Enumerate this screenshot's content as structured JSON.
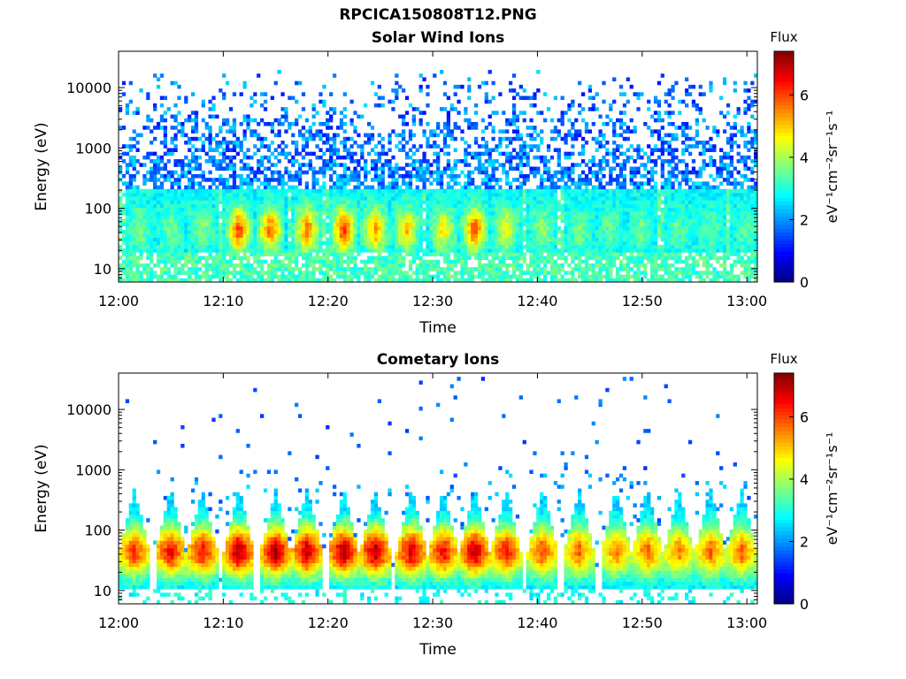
{
  "main_title": "RPCICA150808T12.PNG",
  "colorbar": {
    "label": "Flux",
    "unit_label": "eV⁻¹cm⁻²sr⁻¹s⁻¹",
    "ticks": [
      "0",
      "2",
      "4",
      "6"
    ],
    "range": [
      0,
      7.4
    ],
    "colormap": "jet"
  },
  "chart_data": [
    {
      "type": "heatmap",
      "title": "Solar Wind Ions",
      "xlabel": "Time",
      "ylabel": "Energy (eV)",
      "xlim": [
        "12:00",
        "13:01"
      ],
      "ylim": [
        6,
        40000
      ],
      "yscale": "log",
      "xticks": [
        "12:00",
        "12:10",
        "12:20",
        "12:30",
        "12:40",
        "12:50",
        "13:00"
      ],
      "yticks": [
        10,
        100,
        1000,
        10000
      ],
      "ytick_labels": [
        "10",
        "100",
        "1000",
        "10000"
      ],
      "zlim": [
        0,
        7.4
      ],
      "burst_times_min": [
        2,
        5,
        8,
        11.5,
        14.5,
        18,
        21.5,
        24.5,
        27.5,
        31,
        34,
        37,
        40.5,
        44,
        47,
        50,
        53.5,
        56.5,
        60
      ],
      "burst_peak_flux": [
        3.8,
        3.6,
        3.8,
        6.2,
        5.8,
        5.8,
        6.2,
        5.5,
        5.2,
        4.8,
        6.0,
        4.6,
        4.0,
        3.6,
        3.6,
        3.6,
        3.5,
        3.5,
        3.5
      ],
      "background_flux": "1.2-2.8 above 200 eV"
    },
    {
      "type": "heatmap",
      "title": "Cometary Ions",
      "xlabel": "Time",
      "ylabel": "Energy (eV)",
      "xlim": [
        "12:00",
        "13:01"
      ],
      "ylim": [
        6,
        40000
      ],
      "yscale": "log",
      "xticks": [
        "12:00",
        "12:10",
        "12:20",
        "12:30",
        "12:40",
        "12:50",
        "13:00"
      ],
      "yticks": [
        10,
        100,
        1000,
        10000
      ],
      "ytick_labels": [
        "10",
        "100",
        "1000",
        "10000"
      ],
      "zlim": [
        0,
        7.4
      ],
      "burst_times_min": [
        1.5,
        5,
        8,
        11.5,
        15,
        18,
        21.5,
        24.5,
        28,
        31,
        34,
        37,
        40.5,
        44,
        47.5,
        50.5,
        53.5,
        56.5,
        59.5
      ],
      "burst_peak_flux": [
        6.2,
        6.6,
        6.6,
        7.2,
        7.1,
        7.0,
        7.2,
        7.1,
        6.9,
        6.6,
        7.1,
        6.5,
        6.0,
        5.8,
        5.6,
        5.8,
        5.6,
        5.8,
        5.8
      ],
      "background_flux": "sparse 1-2 above 1000 eV"
    }
  ]
}
